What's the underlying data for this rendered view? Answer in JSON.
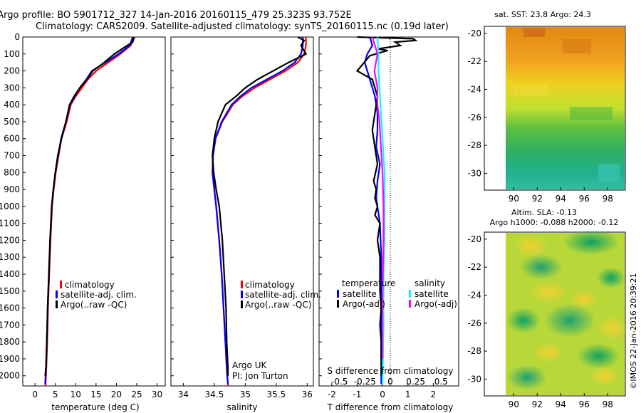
{
  "title_line1": "Argo profile: BO 5901712_327 14-Jan-2016 20160115_479 25.323S 93.752E",
  "title_line2": "Climatology: CARS2009. Satellite-adjusted climatology: synTS_20160115.nc (0.19d later)",
  "colors": {
    "climatology": "#ff0000",
    "satellite": "#0000ff",
    "argo": "#000000",
    "sal_satellite": "#00ffff",
    "sal_argo": "#ff00ff"
  },
  "depth_ticks": [
    "0",
    "100",
    "200",
    "300",
    "400",
    "500",
    "600",
    "700",
    "800",
    "900",
    "1000",
    "1100",
    "1200",
    "1300",
    "1400",
    "1500",
    "1600",
    "1700",
    "1800",
    "1900",
    "2000"
  ],
  "panel_temperature": {
    "xlabel": "temperature (deg C)",
    "x_ticks": [
      "0",
      "5",
      "10",
      "15",
      "20",
      "25",
      "30"
    ],
    "legend": [
      "climatology",
      "satellite-adj. clim.",
      "Argo(..raw -QC)"
    ]
  },
  "panel_salinity": {
    "xlabel": "salinity",
    "x_ticks": [
      "34",
      "34.5",
      "35",
      "35.5",
      "36"
    ],
    "legend": [
      "climatology",
      "satellite-adj. clim.",
      "Argo(..raw -QC)"
    ],
    "note1": "Argo UK",
    "note2": "PI: Jon Turton"
  },
  "panel_difference": {
    "xlabel": "T difference from climatology",
    "x_ticks": [
      "-2",
      "-1",
      "0",
      "1",
      "2"
    ],
    "s_label": "S difference from climatology",
    "s_ticks": [
      "-0.5",
      "-0.25",
      "0",
      "0.25",
      "0.5"
    ],
    "legend_temp_title": "temperature",
    "legend_sal_title": "salinity",
    "legend_temp": [
      "satellite",
      "Argo(-adj)"
    ],
    "legend_sal": [
      "satellite",
      "Argo(-adj)"
    ]
  },
  "map_sst": {
    "title": "sat. SST: 23.8  Argo: 24.3",
    "y_ticks": [
      "-20",
      "-22",
      "-24",
      "-26",
      "-28",
      "-30"
    ],
    "x_ticks": [
      "90",
      "92",
      "94",
      "96",
      "98"
    ]
  },
  "map_sla": {
    "title1": "Altim. SLA: -0.13",
    "title2": "Argo h1000: -0.088 h2000: -0.12",
    "y_ticks": [
      "-20",
      "-22",
      "-24",
      "-26",
      "-28",
      "-30"
    ],
    "x_ticks": [
      "90",
      "92",
      "94",
      "96",
      "98"
    ]
  },
  "side_stamp": "©IMOS 22-Jan-2016 20:39:21",
  "chart_data": [
    {
      "type": "line",
      "title": "",
      "xlabel": "temperature (deg C)",
      "ylabel": "",
      "xlim": [
        -3,
        32
      ],
      "ylim": [
        2060,
        0
      ],
      "series": [
        {
          "name": "climatology",
          "x": [
            24.5,
            23.5,
            21,
            18,
            15,
            13,
            11.5,
            10,
            8.8,
            7.8,
            6.5,
            5.8,
            5.1,
            4.6,
            4.2,
            3.8,
            3.5,
            3.2,
            3.0,
            2.8,
            2.6,
            2.5
          ],
          "y": [
            0,
            50,
            100,
            150,
            200,
            250,
            300,
            350,
            400,
            500,
            600,
            700,
            800,
            900,
            1000,
            1200,
            1400,
            1600,
            1800,
            1950,
            2050,
            2060
          ]
        },
        {
          "name": "satellite-adj. clim.",
          "x": [
            24.0,
            23.3,
            20.5,
            17.3,
            14.0,
            12.6,
            11.0,
            9.8,
            8.6,
            7.6,
            6.4,
            5.7,
            5.0,
            4.5,
            4.1,
            3.7,
            3.4,
            3.1,
            2.9,
            2.7,
            2.5
          ],
          "y": [
            0,
            50,
            100,
            150,
            200,
            250,
            300,
            350,
            400,
            500,
            600,
            700,
            800,
            900,
            1000,
            1200,
            1400,
            1600,
            1800,
            1950,
            2050
          ]
        },
        {
          "name": "Argo(..raw -QC)",
          "x": [
            24.3,
            24.0,
            22,
            19.5,
            17,
            14.2,
            12.8,
            11.0,
            9.6,
            8.5,
            7.6,
            6.5,
            5.6,
            5.0,
            4.5,
            4.1,
            3.7,
            3.4,
            3.1,
            2.9,
            2.7,
            2.5
          ],
          "y": [
            0,
            30,
            60,
            100,
            150,
            200,
            250,
            300,
            350,
            400,
            500,
            600,
            700,
            800,
            900,
            1000,
            1200,
            1400,
            1600,
            1800,
            1950,
            2000
          ]
        }
      ]
    },
    {
      "type": "line",
      "title": "",
      "xlabel": "salinity",
      "ylabel": "",
      "xlim": [
        33.8,
        36.1
      ],
      "ylim": [
        2060,
        0
      ],
      "series": [
        {
          "name": "climatology",
          "x": [
            35.98,
            35.98,
            35.95,
            35.85,
            35.65,
            35.4,
            35.15,
            34.95,
            34.8,
            34.63,
            34.52,
            34.48,
            34.47,
            34.5,
            34.53,
            34.58,
            34.62,
            34.65,
            34.68,
            34.7,
            34.72,
            34.73
          ],
          "y": [
            0,
            50,
            100,
            150,
            200,
            250,
            300,
            350,
            400,
            500,
            600,
            700,
            800,
            900,
            1000,
            1200,
            1400,
            1600,
            1800,
            1950,
            2050,
            2060
          ]
        },
        {
          "name": "satellite-adj. clim.",
          "x": [
            35.93,
            35.93,
            35.9,
            35.8,
            35.6,
            35.35,
            35.1,
            34.92,
            34.78,
            34.62,
            34.52,
            34.48,
            34.47,
            34.5,
            34.53,
            34.58,
            34.62,
            34.65,
            34.68,
            34.7,
            34.72
          ],
          "y": [
            0,
            50,
            100,
            150,
            200,
            250,
            300,
            350,
            400,
            500,
            600,
            700,
            800,
            900,
            1000,
            1200,
            1400,
            1600,
            1800,
            1950,
            2050
          ]
        },
        {
          "name": "Argo(..raw -QC)",
          "x": [
            35.85,
            35.95,
            35.9,
            35.98,
            35.7,
            35.45,
            35.2,
            35.0,
            34.85,
            34.68,
            34.56,
            34.5,
            34.47,
            34.49,
            34.53,
            34.58,
            34.63,
            34.66,
            34.69,
            34.7,
            34.72,
            34.72
          ],
          "y": [
            0,
            20,
            50,
            100,
            150,
            200,
            250,
            300,
            350,
            400,
            500,
            600,
            700,
            800,
            900,
            1000,
            1200,
            1400,
            1600,
            1800,
            1950,
            2000
          ]
        }
      ]
    },
    {
      "type": "line",
      "title": "",
      "xlabel": "T difference from climatology",
      "ylabel": "",
      "xlim": [
        -2.5,
        3
      ],
      "ylim": [
        2060,
        0
      ],
      "series": [
        {
          "name": "temperature satellite",
          "x": [
            -0.5,
            -0.4,
            -0.6,
            -0.7,
            -0.5,
            -0.3,
            -0.2,
            -0.2,
            -0.25,
            -0.1,
            -0.2,
            -0.25,
            -0.1,
            -0.05,
            -0.05,
            -0.05,
            -0.05,
            -0.05
          ],
          "y": [
            0,
            50,
            100,
            150,
            250,
            350,
            450,
            550,
            650,
            750,
            850,
            950,
            1100,
            1300,
            1500,
            1700,
            1900,
            2050
          ]
        },
        {
          "name": "temperature Argo(-adj)",
          "x": [
            -1.0,
            1.2,
            1.3,
            0.5,
            0.7,
            -0.2,
            0.2,
            -0.5,
            -1.0,
            -0.4,
            -0.2,
            -0.3,
            -0.4,
            -0.3,
            -0.2,
            -0.35,
            -0.25,
            -0.3,
            -0.2,
            -0.3,
            -0.1,
            -0.2,
            -0.1,
            -0.1,
            -0.05,
            -0.1,
            -0.05,
            -0.05
          ],
          "y": [
            0,
            10,
            20,
            30,
            50,
            70,
            80,
            110,
            200,
            250,
            350,
            450,
            550,
            650,
            750,
            850,
            900,
            950,
            1000,
            1050,
            1100,
            1200,
            1300,
            1500,
            1600,
            1700,
            1800,
            2000
          ]
        },
        {
          "name": "salinity satellite",
          "x": [
            -0.05,
            -0.04,
            -0.04,
            -0.03,
            -0.02,
            -0.01,
            0.0,
            0.01,
            0.02,
            0.02,
            0.02,
            0.02,
            0.01,
            0.01,
            0.0
          ],
          "y": [
            0,
            100,
            200,
            300,
            400,
            500,
            600,
            700,
            800,
            900,
            1000,
            1200,
            1400,
            1700,
            2050
          ]
        },
        {
          "name": "salinity Argo(-adj)",
          "x": [
            -0.1,
            -0.05,
            -0.08,
            -0.05,
            -0.05,
            -0.03,
            -0.02,
            0.0,
            0.01,
            0.01,
            0.0,
            0.0
          ],
          "y": [
            0,
            100,
            200,
            300,
            400,
            500,
            600,
            800,
            1000,
            1200,
            1500,
            1900
          ]
        }
      ]
    }
  ]
}
